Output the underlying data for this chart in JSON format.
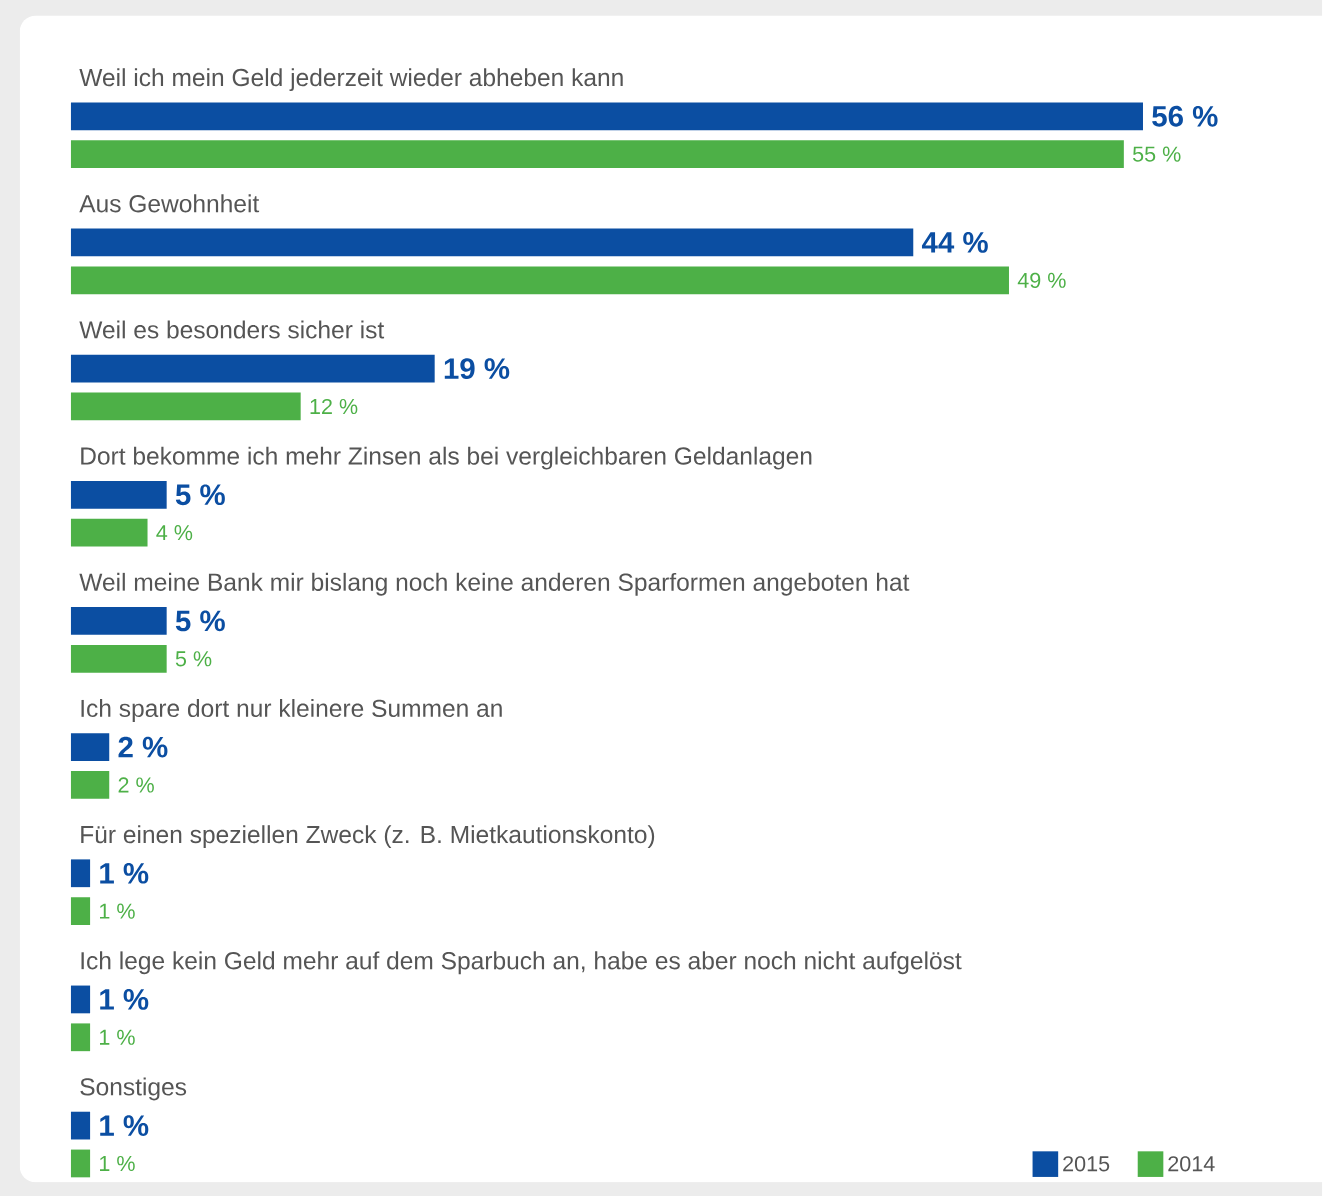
{
  "chart_data": {
    "type": "bar",
    "orientation": "horizontal",
    "legend": "bottom right",
    "categories": [
      "Weil ich mein Geld jederzeit wieder abheben kann",
      "Aus Gewohnheit",
      "Weil es besonders sicher ist",
      "Dort bekomme ich mehr Zinsen als bei vergleichbaren Geldanlagen",
      "Weil meine Bank mir bislang noch keine anderen Sparformen angeboten hat",
      "Ich spare dort nur kleinere Summen an",
      "Für einen speziellen Zweck (z. B. Mietkautionskonto)",
      "Ich lege kein Geld mehr auf dem Sparbuch an, habe es aber noch nicht aufgelöst",
      "Sonstiges"
    ],
    "series": [
      {
        "name": "2015",
        "color": "#0b4ea2",
        "values": [
          56,
          44,
          19,
          5,
          5,
          2,
          1,
          1,
          1
        ],
        "value_labels": [
          "56 %",
          "44 %",
          "19 %",
          "5 %",
          "5 %",
          "2 %",
          "1 %",
          "1 %",
          "1 %"
        ]
      },
      {
        "name": "2014",
        "color": "#4db047",
        "values": [
          55,
          49,
          12,
          4,
          5,
          2,
          1,
          1,
          1
        ],
        "value_labels": [
          "55 %",
          "49 %",
          "12 %",
          "4 %",
          "5 %",
          "2 %",
          "1 %",
          "1 %",
          "1 %"
        ]
      }
    ]
  }
}
